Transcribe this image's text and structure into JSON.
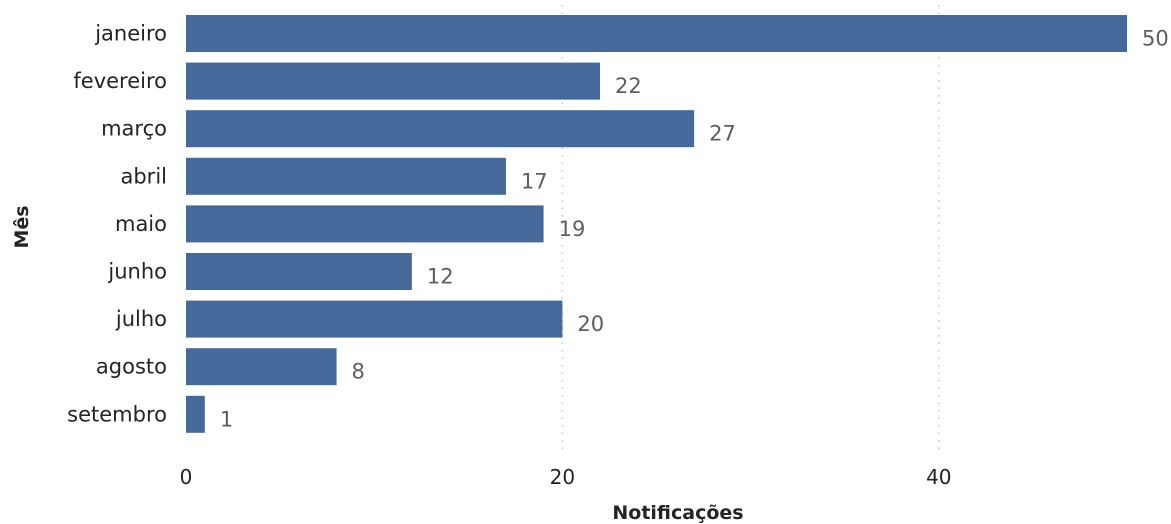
{
  "chart_data": {
    "type": "bar",
    "orientation": "horizontal",
    "categories": [
      "janeiro",
      "fevereiro",
      "março",
      "abril",
      "maio",
      "junho",
      "julho",
      "agosto",
      "setembro"
    ],
    "values": [
      50,
      22,
      27,
      17,
      19,
      12,
      20,
      8,
      1
    ],
    "xlabel": "Notificações",
    "ylabel": "Mês",
    "xlim": [
      0,
      50
    ],
    "xticks": [
      0,
      20,
      40
    ],
    "grid": "vertical-dotted",
    "legend": "none",
    "bar_color": "#44699a",
    "data_label_color": "#605e5c"
  }
}
